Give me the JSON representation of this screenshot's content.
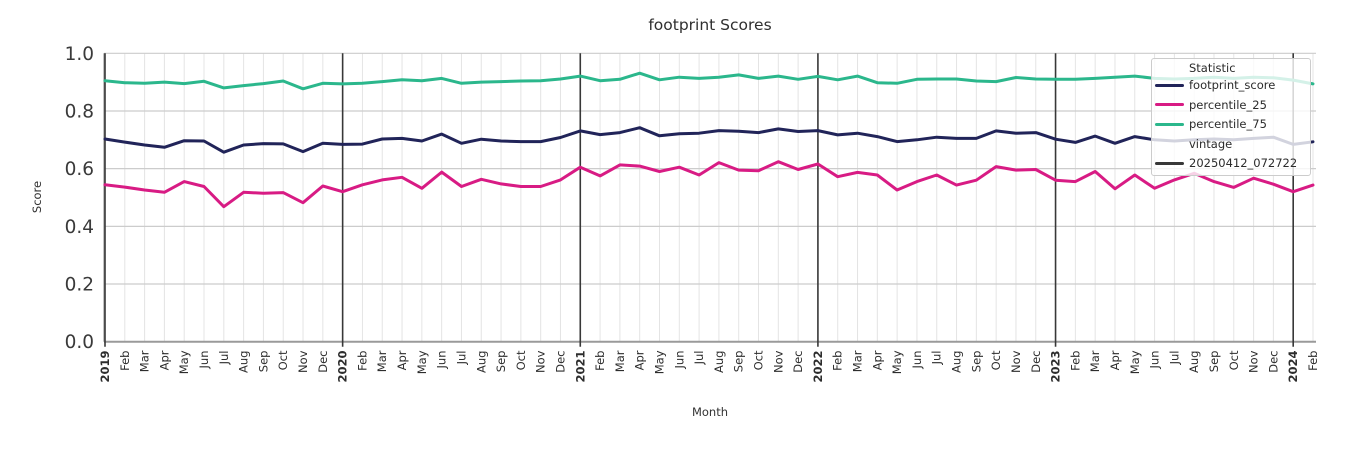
{
  "figure": {
    "title": "footprint Scores"
  },
  "axes": {
    "x_label": "Month",
    "y_label": "Score"
  },
  "legend": {
    "title": "Statistic",
    "entries": [
      {
        "label": "footprint_score",
        "color": "#212459"
      },
      {
        "label": "percentile_25",
        "color": "#d81b84"
      },
      {
        "label": "percentile_75",
        "color": "#2bb78c"
      }
    ],
    "subtitle": "vintage",
    "vintage_entry": {
      "label": "20250412_072722",
      "color": "#383838"
    }
  },
  "chart_data": {
    "type": "line",
    "title": "footprint Scores",
    "xlabel": "Month",
    "ylabel": "Score",
    "ylim": [
      0.0,
      1.0
    ],
    "grid": true,
    "legend_position": "upper right",
    "y_ticks": [
      0.0,
      0.2,
      0.4,
      0.6,
      0.8,
      1.0
    ],
    "y_tick_labels": [
      "0.0",
      "0.2",
      "0.4",
      "0.6",
      "0.8",
      "1.0"
    ],
    "x_tick_labels": [
      "2019",
      "Feb",
      "Mar",
      "Apr",
      "May",
      "Jun",
      "Jul",
      "Aug",
      "Sep",
      "Oct",
      "Nov",
      "Dec",
      "2020",
      "Feb",
      "Mar",
      "Apr",
      "May",
      "Jun",
      "Jul",
      "Aug",
      "Sep",
      "Oct",
      "Nov",
      "Dec",
      "2021",
      "Feb",
      "Mar",
      "Apr",
      "May",
      "Jun",
      "Jul",
      "Aug",
      "Sep",
      "Oct",
      "Nov",
      "Dec",
      "2022",
      "Feb",
      "Mar",
      "Apr",
      "May",
      "Jun",
      "Jul",
      "Aug",
      "Sep",
      "Oct",
      "Nov",
      "Dec",
      "2023",
      "Feb",
      "Mar",
      "Apr",
      "May",
      "Jun",
      "Jul",
      "Aug",
      "Sep",
      "Oct",
      "Nov",
      "Dec",
      "2024",
      "Feb"
    ],
    "vintage_lines": {
      "label": "20250412_072722",
      "color": "#383838",
      "at_indices": [
        0,
        12,
        24,
        36,
        48,
        60
      ]
    },
    "series": [
      {
        "name": "footprint_score",
        "color": "#212459",
        "values": [
          0.703,
          0.692,
          0.682,
          0.674,
          0.697,
          0.696,
          0.657,
          0.682,
          0.687,
          0.686,
          0.659,
          0.688,
          0.684,
          0.685,
          0.703,
          0.705,
          0.696,
          0.72,
          0.688,
          0.702,
          0.696,
          0.694,
          0.694,
          0.708,
          0.731,
          0.718,
          0.725,
          0.742,
          0.714,
          0.721,
          0.723,
          0.732,
          0.73,
          0.725,
          0.738,
          0.729,
          0.732,
          0.717,
          0.723,
          0.711,
          0.694,
          0.7,
          0.709,
          0.705,
          0.705,
          0.731,
          0.723,
          0.725,
          0.702,
          0.691,
          0.713,
          0.688,
          0.711,
          0.7,
          0.696,
          0.7,
          0.703,
          0.7,
          0.705,
          0.709,
          0.684,
          0.693
        ]
      },
      {
        "name": "percentile_25",
        "color": "#d81b84",
        "values": [
          0.544,
          0.536,
          0.526,
          0.518,
          0.555,
          0.538,
          0.468,
          0.518,
          0.515,
          0.517,
          0.482,
          0.54,
          0.52,
          0.544,
          0.561,
          0.57,
          0.532,
          0.588,
          0.538,
          0.563,
          0.547,
          0.538,
          0.538,
          0.561,
          0.605,
          0.575,
          0.613,
          0.609,
          0.59,
          0.605,
          0.578,
          0.621,
          0.595,
          0.593,
          0.624,
          0.597,
          0.616,
          0.572,
          0.587,
          0.578,
          0.526,
          0.555,
          0.578,
          0.543,
          0.56,
          0.607,
          0.595,
          0.597,
          0.56,
          0.555,
          0.59,
          0.53,
          0.578,
          0.532,
          0.561,
          0.584,
          0.555,
          0.535,
          0.567,
          0.546,
          0.52,
          0.543
        ]
      },
      {
        "name": "percentile_75",
        "color": "#2bb78c",
        "values": [
          0.905,
          0.898,
          0.896,
          0.9,
          0.895,
          0.903,
          0.88,
          0.888,
          0.895,
          0.904,
          0.877,
          0.896,
          0.894,
          0.896,
          0.902,
          0.908,
          0.905,
          0.913,
          0.896,
          0.9,
          0.902,
          0.904,
          0.905,
          0.911,
          0.921,
          0.905,
          0.91,
          0.931,
          0.908,
          0.917,
          0.913,
          0.917,
          0.925,
          0.913,
          0.921,
          0.91,
          0.92,
          0.908,
          0.921,
          0.898,
          0.896,
          0.91,
          0.911,
          0.911,
          0.904,
          0.902,
          0.916,
          0.911,
          0.91,
          0.91,
          0.913,
          0.917,
          0.921,
          0.913,
          0.911,
          0.913,
          0.917,
          0.913,
          0.917,
          0.915,
          0.907,
          0.894
        ]
      }
    ]
  }
}
